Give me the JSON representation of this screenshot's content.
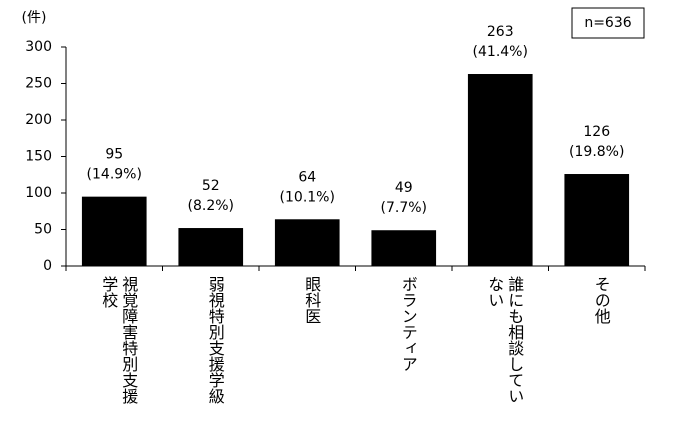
{
  "chart_data": {
    "type": "bar",
    "y_label": "(件)",
    "note": "n=636",
    "categories": [
      "視覚障害特別支援学校",
      "弱視特別支援学級",
      "眼科医",
      "ボランティア",
      "誰にも相談していない",
      "その他"
    ],
    "values": [
      95,
      52,
      64,
      49,
      263,
      126
    ],
    "percent_labels": [
      "(14.9%)",
      "(8.2%)",
      "(10.1%)",
      "(7.7%)",
      "(41.4%)",
      "(19.8%)"
    ],
    "color": "#000000",
    "ylim": [
      0,
      300
    ],
    "yticks": [
      0,
      50,
      100,
      150,
      200,
      250,
      300
    ],
    "grid": false
  }
}
